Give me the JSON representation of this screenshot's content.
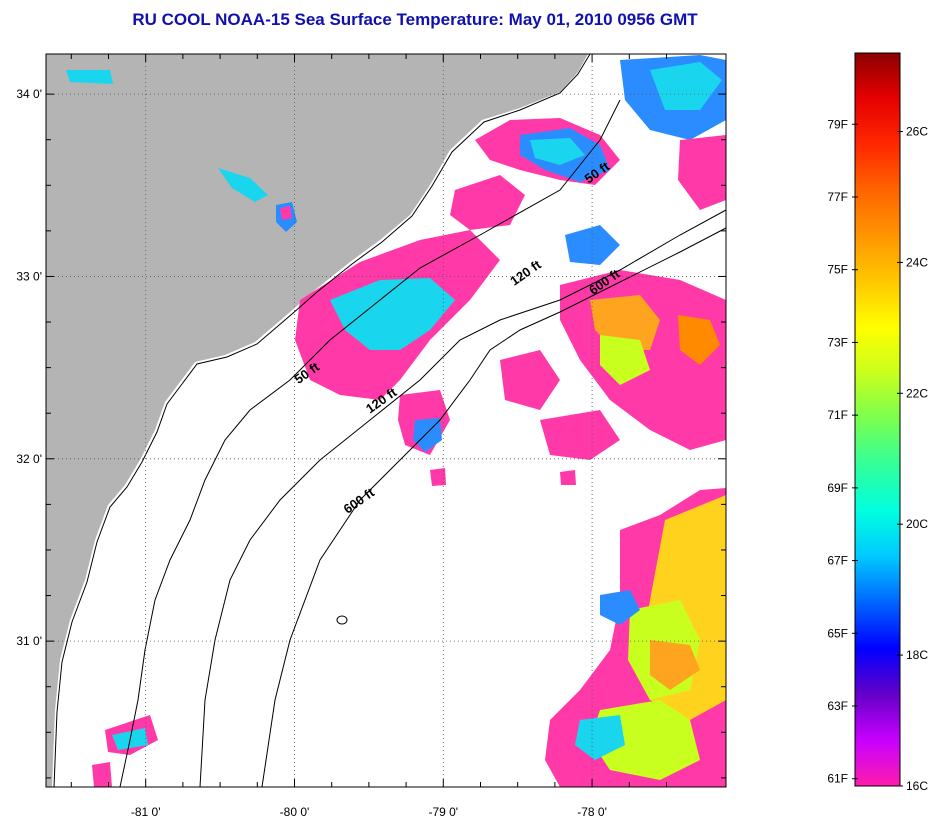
{
  "title": "RU COOL  NOAA-15  Sea Surface Temperature:  May 01, 2010 0956 GMT",
  "map": {
    "lon_ticks": [
      {
        "value": -81,
        "label": "-81 0'"
      },
      {
        "value": -80,
        "label": "-80 0'"
      },
      {
        "value": -79,
        "label": "-79 0'"
      },
      {
        "value": -78,
        "label": "-78 0'"
      }
    ],
    "lat_ticks": [
      {
        "value": 34,
        "label": "34 0'"
      },
      {
        "value": 33,
        "label": "33 0'"
      },
      {
        "value": 32,
        "label": "32 0'"
      },
      {
        "value": 31,
        "label": "31 0'"
      }
    ],
    "lon_range": [
      -81.67,
      -77.1
    ],
    "lat_range": [
      30.2,
      34.22
    ],
    "grid": true,
    "colors": {
      "land": "#b4b4b4",
      "ocean": "#ffffff",
      "contour": "#000000"
    },
    "contour_labels": [
      {
        "id": "50ft-north",
        "text": "50 ft",
        "lon": -77.95,
        "lat": 33.55
      },
      {
        "id": "50ft-south",
        "text": "50 ft",
        "lon": -79.9,
        "lat": 32.45
      },
      {
        "id": "120ft-north",
        "text": "120 ft",
        "lon": -78.43,
        "lat": 33.0
      },
      {
        "id": "120ft-south",
        "text": "120 ft",
        "lon": -79.4,
        "lat": 32.3
      },
      {
        "id": "600ft-north",
        "text": "600 ft",
        "lon": -77.9,
        "lat": 32.95
      },
      {
        "id": "600ft-south",
        "text": "600 ft",
        "lon": -79.55,
        "lat": 31.75
      }
    ]
  },
  "colorbar": {
    "min_c": 16,
    "max_c": 27.2,
    "colors": [
      "#ff1cac",
      "#c800ff",
      "#6400c8",
      "#0000ff",
      "#0064ff",
      "#00c8ff",
      "#00ffe0",
      "#32ff9b",
      "#78ff50",
      "#c8ff1e",
      "#ffff00",
      "#ffc800",
      "#ff9600",
      "#ff6400",
      "#ff2800",
      "#e60000",
      "#8c0000"
    ],
    "fahrenheit_labels": [
      "61F",
      "63F",
      "65F",
      "67F",
      "69F",
      "71F",
      "73F",
      "75F",
      "77F",
      "79F"
    ],
    "celsius_labels": [
      "16C",
      "18C",
      "20C",
      "22C",
      "24C",
      "26C"
    ]
  }
}
